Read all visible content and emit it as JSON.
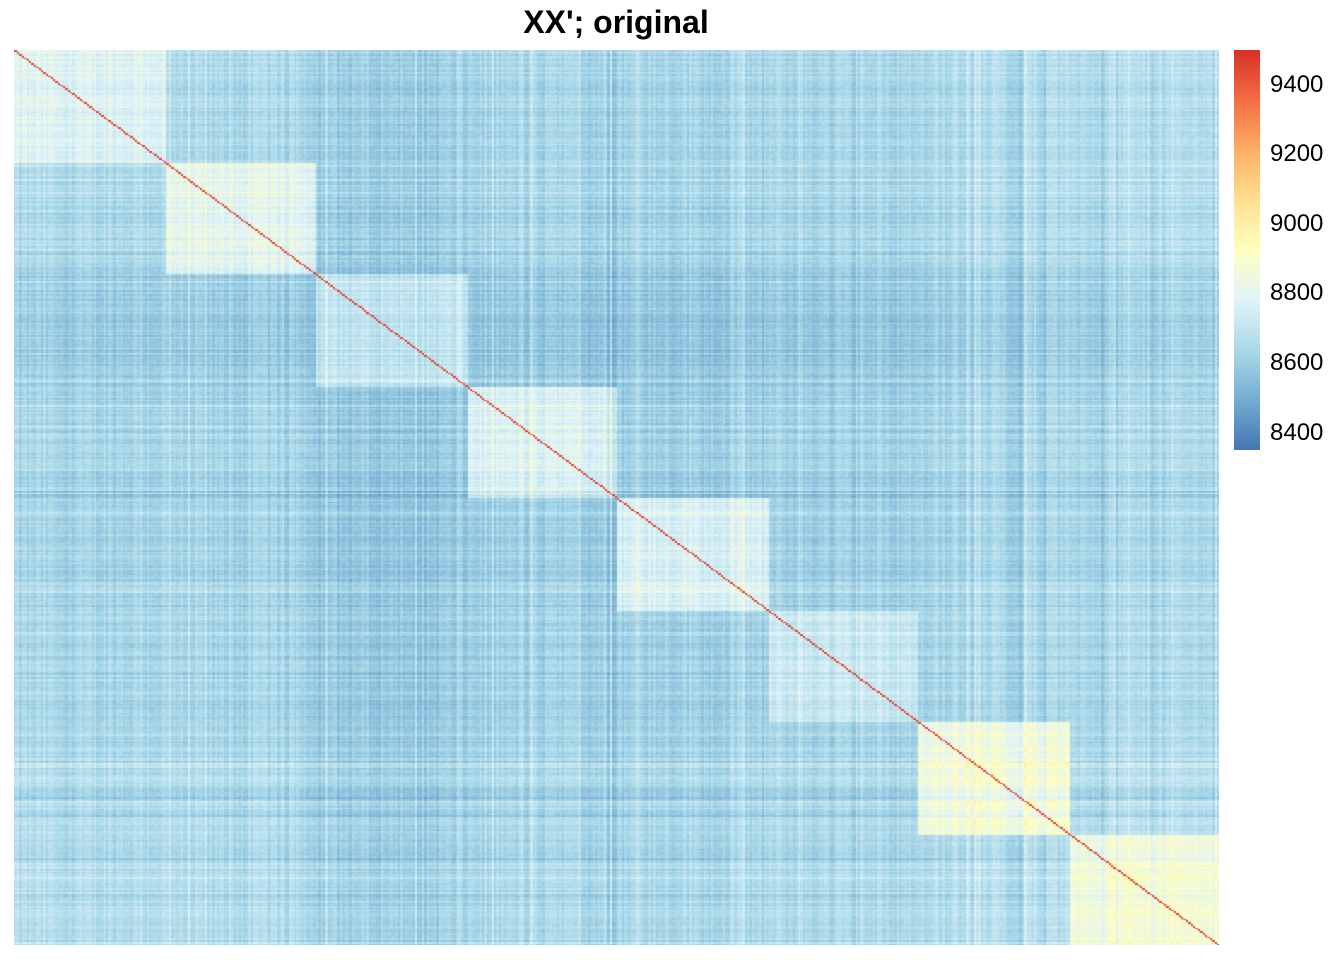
{
  "chart_data": {
    "type": "heatmap",
    "title": "XX'; original",
    "xlabel": "",
    "ylabel": "",
    "value_range": [
      8350,
      9500
    ],
    "diagonal_value": 9450,
    "n_blocks": 8,
    "block_values": [
      {
        "block": 1,
        "within_block": 8780,
        "between_block": 8650
      },
      {
        "block": 2,
        "within_block": 8790,
        "between_block": 8630
      },
      {
        "block": 3,
        "within_block": 8700,
        "between_block": 8560
      },
      {
        "block": 4,
        "within_block": 8760,
        "between_block": 8600
      },
      {
        "block": 5,
        "within_block": 8770,
        "between_block": 8610
      },
      {
        "block": 6,
        "within_block": 8720,
        "between_block": 8620
      },
      {
        "block": 7,
        "within_block": 8850,
        "between_block": 8650
      },
      {
        "block": 8,
        "within_block": 8860,
        "between_block": 8670
      }
    ],
    "colorscale": [
      "#4575b4",
      "#74add1",
      "#abd9e9",
      "#e0f3f8",
      "#ffffbf",
      "#fee090",
      "#fdae61",
      "#f46d43",
      "#d73027"
    ],
    "legend": {
      "position": "right",
      "ticks": [
        9400,
        9200,
        9000,
        8800,
        8600,
        8400
      ]
    }
  }
}
